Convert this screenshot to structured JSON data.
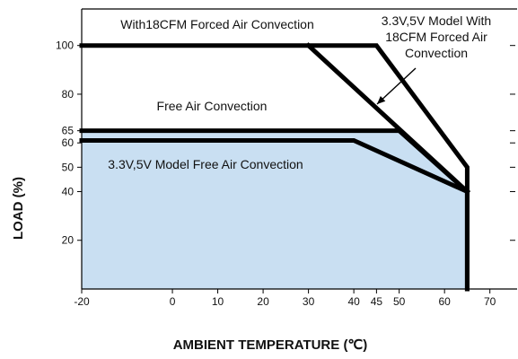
{
  "chart_data": {
    "type": "line",
    "xlabel": "AMBIENT TEMPERATURE (℃)",
    "ylabel": "LOAD (%)",
    "xlim": [
      -20,
      76
    ],
    "ylim": [
      0,
      115
    ],
    "x_ticks": [
      -20,
      0,
      10,
      20,
      30,
      40,
      45,
      50,
      60,
      70
    ],
    "y_ticks": [
      20,
      40,
      50,
      60,
      65,
      80,
      100
    ],
    "grid": false,
    "fill_color": "#c9dff2",
    "line_color": "#000000",
    "series": [
      {
        "name": "With18CFM Forced Air Convection",
        "x": [
          -20,
          45,
          65,
          65
        ],
        "y": [
          100,
          100,
          50,
          0
        ]
      },
      {
        "name": "3.3V,5V Model With 18CFM Forced Air Convection",
        "x": [
          30,
          65
        ],
        "y": [
          100,
          40
        ]
      },
      {
        "name": "Free Air Convection",
        "x": [
          -20,
          50,
          65,
          65
        ],
        "y": [
          65,
          65,
          40,
          0
        ],
        "filled": true
      },
      {
        "name": "3.3V,5V Model Free Air Convection",
        "x": [
          -20,
          40,
          65
        ],
        "y": [
          61,
          61,
          40
        ]
      }
    ],
    "annotations": [
      {
        "id": "forced",
        "lines": [
          "With18CFM Forced Air Convection"
        ]
      },
      {
        "id": "model-forced",
        "lines": [
          "3.3V,5V Model With",
          "18CFM Forced Air",
          "Convection"
        ]
      },
      {
        "id": "free",
        "lines": [
          "Free Air Convection"
        ]
      },
      {
        "id": "model-free",
        "lines": [
          "3.3V,5V Model Free Air Convection"
        ]
      }
    ]
  }
}
